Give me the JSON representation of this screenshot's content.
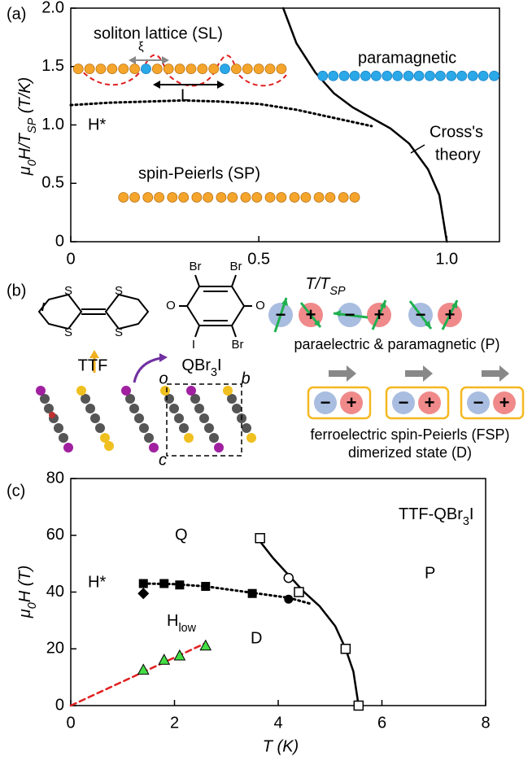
{
  "panel_labels": [
    "(a)",
    "(b)",
    "(c)"
  ],
  "chart_data": [
    {
      "type": "line",
      "x_label": [
        "T/T",
        "SP"
      ],
      "y_label": [
        "μ",
        "0",
        "H/T",
        "SP",
        " (T/K)"
      ],
      "xlim": [
        0,
        1.14
      ],
      "ylim": [
        0,
        2
      ],
      "xticks": [
        0,
        0.5,
        {
          "value": 1,
          "label": "1.0"
        }
      ],
      "yticks": [
        0,
        0.5,
        {
          "value": 1,
          "label": "1.0"
        },
        {
          "value": 1.5,
          "label": "1.5"
        },
        {
          "value": 2,
          "label": "2.0"
        }
      ],
      "annotations": [
        "soliton lattice (SL)",
        "ξ",
        "L",
        "paramagnetic",
        "H*",
        "Cross's",
        "theory",
        "spin-Peierls (SP)"
      ],
      "series": [
        {
          "style": "solid",
          "color": "#000000",
          "x": [
            0.565,
            0.6,
            0.65,
            0.7,
            0.75,
            0.8,
            0.85,
            0.9,
            0.95,
            0.98,
            1.0
          ],
          "values": [
            2.0,
            1.7,
            1.45,
            1.27,
            1.15,
            1.06,
            0.97,
            0.84,
            0.62,
            0.4,
            0
          ]
        },
        {
          "style": "dotted",
          "color": "#000000",
          "x": [
            0,
            0.1,
            0.2,
            0.3,
            0.4,
            0.5,
            0.6,
            0.7,
            0.8
          ],
          "values": [
            1.17,
            1.19,
            1.2,
            1.21,
            1.2,
            1.18,
            1.13,
            1.06,
            0.99
          ]
        },
        {
          "style": "dot",
          "color": "#f5a52c",
          "x": [
            0.14,
            0.17,
            0.205,
            0.235,
            0.27,
            0.3,
            0.335,
            0.365,
            0.4,
            0.43,
            0.465,
            0.495,
            0.53,
            0.56,
            0.595,
            0.625,
            0.66,
            0.69,
            0.725,
            0.755
          ],
          "values": [
            0.38,
            0.38,
            0.38,
            0.38,
            0.38,
            0.38,
            0.38,
            0.38,
            0.38,
            0.38,
            0.38,
            0.38,
            0.38,
            0.38,
            0.38,
            0.38,
            0.38,
            0.38,
            0.38,
            0.38
          ]
        },
        {
          "style": "dot",
          "color": "#f5a52c",
          "x": [
            0.02,
            0.05,
            0.08,
            0.11,
            0.14,
            0.17,
            0.23,
            0.26,
            0.29,
            0.32,
            0.35,
            0.38,
            0.44,
            0.47,
            0.5,
            0.53,
            0.56
          ],
          "values": [
            1.48,
            1.48,
            1.48,
            1.48,
            1.48,
            1.48,
            1.48,
            1.48,
            1.48,
            1.48,
            1.48,
            1.48,
            1.48,
            1.48,
            1.48,
            1.48,
            1.48
          ]
        },
        {
          "style": "dot",
          "color": "#2aa8e8",
          "x": [
            0.2,
            0.41
          ],
          "values": [
            1.48,
            1.48
          ]
        },
        {
          "style": "dot",
          "color": "#2aa8e8",
          "x": [
            0.67,
            0.698,
            0.727,
            0.755,
            0.784,
            0.812,
            0.841,
            0.869,
            0.898,
            0.926,
            0.955,
            0.983,
            1.012,
            1.04,
            1.069,
            1.097,
            1.126
          ],
          "values": [
            1.42,
            1.42,
            1.42,
            1.42,
            1.42,
            1.42,
            1.42,
            1.42,
            1.42,
            1.42,
            1.42,
            1.42,
            1.42,
            1.42,
            1.42,
            1.42,
            1.42
          ]
        }
      ]
    },
    {
      "type": "line",
      "title": [
        "TTF-QBr",
        "3",
        "I"
      ],
      "x_label": "T (K)",
      "y_label": [
        "μ",
        "0",
        "H (T)"
      ],
      "xlim": [
        0,
        8
      ],
      "ylim": [
        0,
        80
      ],
      "xticks": [
        0,
        2,
        4,
        6,
        8
      ],
      "yticks": [
        0,
        20,
        40,
        60,
        80
      ],
      "annotations": [
        "Q",
        "P",
        "D",
        "H*",
        [
          "H",
          "low"
        ]
      ],
      "series": [
        {
          "style": "dashed",
          "color": "#e02020",
          "x": [
            0,
            2.6
          ],
          "values": [
            0,
            22
          ]
        },
        {
          "style": "solid",
          "color": "#000000",
          "x": [
            3.6,
            3.9,
            4.2,
            4.5,
            4.8,
            5.1,
            5.3,
            5.45,
            5.55
          ],
          "values": [
            59,
            52,
            46,
            40,
            35,
            28,
            20,
            12,
            0
          ]
        },
        {
          "style": "dotted",
          "color": "#000000",
          "x": [
            1.4,
            2.0,
            2.6,
            3.2,
            3.8,
            4.2,
            4.6
          ],
          "values": [
            43,
            42.8,
            42,
            40.5,
            39,
            38,
            36
          ]
        },
        {
          "style": "open-square",
          "color": "#000000",
          "x": [
            3.65,
            4.4,
            5.3,
            5.55
          ],
          "values": [
            59,
            40,
            20,
            0
          ]
        },
        {
          "style": "open-circle",
          "color": "#000000",
          "x": [
            4.2
          ],
          "values": [
            45
          ]
        },
        {
          "style": "filled-square",
          "color": "#000000",
          "x": [
            1.4,
            1.8,
            2.1,
            2.6,
            3.5
          ],
          "values": [
            43,
            43,
            42.5,
            42,
            39.5
          ]
        },
        {
          "style": "filled-circle",
          "color": "#000000",
          "x": [
            4.2
          ],
          "values": [
            37.5
          ]
        },
        {
          "style": "diamond",
          "color": "#000000",
          "x": [
            1.4
          ],
          "values": [
            39.5
          ]
        },
        {
          "style": "triangle",
          "color": "#44dd44",
          "x": [
            1.4,
            1.8,
            2.1,
            2.6
          ],
          "values": [
            12.5,
            16,
            17.5,
            21
          ]
        }
      ]
    }
  ],
  "diagram": {
    "ttf_atoms": [
      "S",
      "S",
      "S",
      "S"
    ],
    "q_atoms": [
      "Br",
      "Br",
      "O",
      "O",
      "I",
      "Br"
    ],
    "ttf_label": "TTF",
    "q_label": [
      "QBr",
      "3",
      "I"
    ],
    "axes": [
      "o",
      "b",
      "c"
    ],
    "p_label": "paraelectric & paramagnetic (P)",
    "fsp_label": [
      "ferroelectric spin-Peierls (FSP)",
      "dimerized state (D)"
    ],
    "plus": "+",
    "minus": "−"
  }
}
